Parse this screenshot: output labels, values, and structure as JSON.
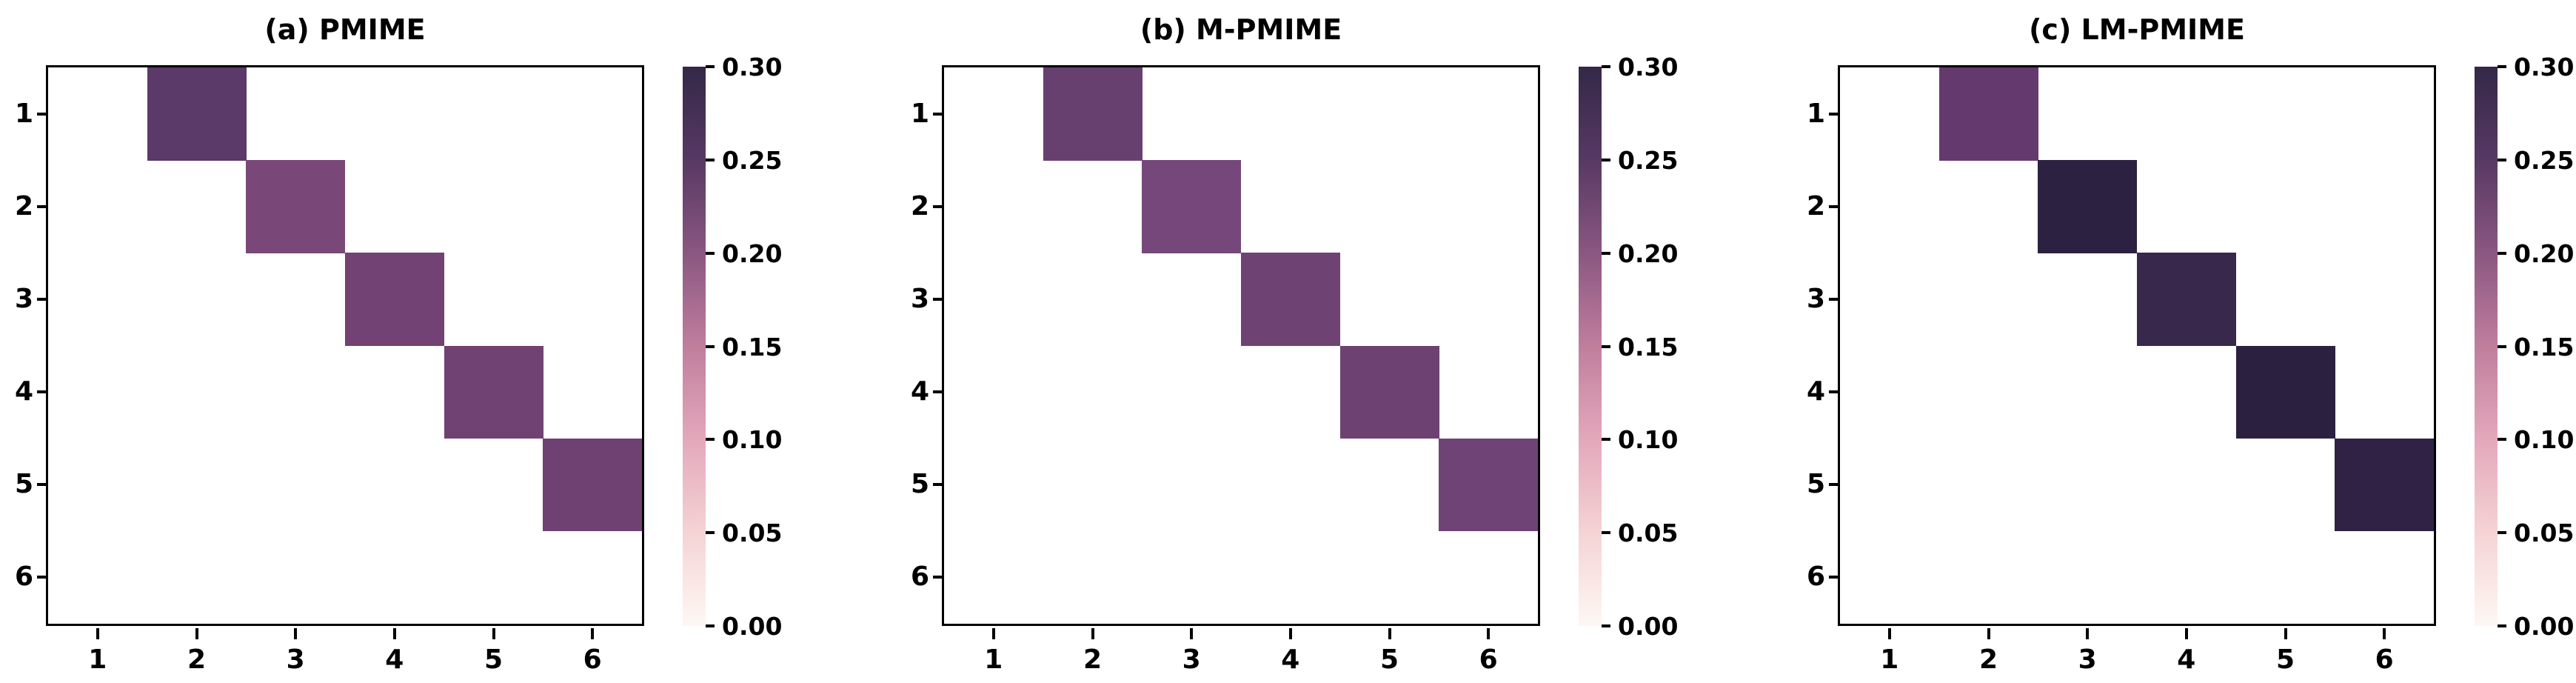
{
  "figure": {
    "background_color": "#ffffff",
    "text_color": "#000000"
  },
  "colormap": {
    "name": "light-pink-to-dark-purple",
    "stops": [
      {
        "value": 0.0,
        "color": "#fdf8f4"
      },
      {
        "value": 0.05,
        "color": "#f5d3d4"
      },
      {
        "value": 0.1,
        "color": "#e3a8bb"
      },
      {
        "value": 0.15,
        "color": "#c07e9d"
      },
      {
        "value": 0.2,
        "color": "#8a5781"
      },
      {
        "value": 0.25,
        "color": "#573964"
      },
      {
        "value": 0.3,
        "color": "#342847"
      }
    ]
  },
  "chart_data": [
    {
      "type": "heatmap",
      "title": "(a) PMIME",
      "x_tick_labels": [
        "1",
        "2",
        "3",
        "4",
        "5",
        "6"
      ],
      "y_tick_labels": [
        "1",
        "2",
        "3",
        "4",
        "5",
        "6"
      ],
      "value_range": [
        0.0,
        0.3
      ],
      "colorbar_ticks": [
        "0.30",
        "0.25",
        "0.20",
        "0.15",
        "0.10",
        "0.05",
        "0.00"
      ],
      "matrix": [
        [
          0,
          0.245,
          0,
          0,
          0,
          0
        ],
        [
          0,
          0,
          0.215,
          0,
          0,
          0
        ],
        [
          0,
          0,
          0,
          0.225,
          0,
          0
        ],
        [
          0,
          0,
          0,
          0,
          0.225,
          0
        ],
        [
          0,
          0,
          0,
          0,
          0,
          0.225
        ],
        [
          0,
          0,
          0,
          0,
          0,
          0
        ]
      ],
      "cells": [
        {
          "row": 1,
          "col": 2,
          "value": 0.245,
          "color": "#5b3968"
        },
        {
          "row": 2,
          "col": 3,
          "value": 0.215,
          "color": "#7a4878"
        },
        {
          "row": 3,
          "col": 4,
          "value": 0.225,
          "color": "#714273"
        },
        {
          "row": 4,
          "col": 5,
          "value": 0.225,
          "color": "#6f4273"
        },
        {
          "row": 5,
          "col": 6,
          "value": 0.225,
          "color": "#6f4173"
        }
      ]
    },
    {
      "type": "heatmap",
      "title": "(b) M-PMIME",
      "x_tick_labels": [
        "1",
        "2",
        "3",
        "4",
        "5",
        "6"
      ],
      "y_tick_labels": [
        "1",
        "2",
        "3",
        "4",
        "5",
        "6"
      ],
      "value_range": [
        0.0,
        0.3
      ],
      "colorbar_ticks": [
        "0.30",
        "0.25",
        "0.20",
        "0.15",
        "0.10",
        "0.05",
        "0.00"
      ],
      "matrix": [
        [
          0,
          0.235,
          0,
          0,
          0,
          0
        ],
        [
          0,
          0,
          0.22,
          0,
          0,
          0
        ],
        [
          0,
          0,
          0,
          0.225,
          0,
          0
        ],
        [
          0,
          0,
          0,
          0,
          0.225,
          0
        ],
        [
          0,
          0,
          0,
          0,
          0,
          0.225
        ],
        [
          0,
          0,
          0,
          0,
          0,
          0
        ]
      ],
      "cells": [
        {
          "row": 1,
          "col": 2,
          "value": 0.235,
          "color": "#684070"
        },
        {
          "row": 2,
          "col": 3,
          "value": 0.22,
          "color": "#75477b"
        },
        {
          "row": 3,
          "col": 4,
          "value": 0.225,
          "color": "#6e4374"
        },
        {
          "row": 4,
          "col": 5,
          "value": 0.225,
          "color": "#6e4173"
        },
        {
          "row": 5,
          "col": 6,
          "value": 0.225,
          "color": "#6f4376"
        }
      ]
    },
    {
      "type": "heatmap",
      "title": "(c) LM-PMIME",
      "x_tick_labels": [
        "1",
        "2",
        "3",
        "4",
        "5",
        "6"
      ],
      "y_tick_labels": [
        "1",
        "2",
        "3",
        "4",
        "5",
        "6"
      ],
      "value_range": [
        0.0,
        0.3
      ],
      "colorbar_ticks": [
        "0.30",
        "0.25",
        "0.20",
        "0.15",
        "0.10",
        "0.05",
        "0.00"
      ],
      "matrix": [
        [
          0,
          0.24,
          0,
          0,
          0,
          0
        ],
        [
          0,
          0,
          0.3,
          0,
          0,
          0
        ],
        [
          0,
          0,
          0,
          0.29,
          0,
          0
        ],
        [
          0,
          0,
          0,
          0,
          0.3,
          0
        ],
        [
          0,
          0,
          0,
          0,
          0,
          0.3
        ],
        [
          0,
          0,
          0,
          0,
          0,
          0
        ]
      ],
      "cells": [
        {
          "row": 1,
          "col": 2,
          "value": 0.24,
          "color": "#643a6e"
        },
        {
          "row": 2,
          "col": 3,
          "value": 0.3,
          "color": "#2d2142"
        },
        {
          "row": 3,
          "col": 4,
          "value": 0.29,
          "color": "#38284c"
        },
        {
          "row": 4,
          "col": 5,
          "value": 0.3,
          "color": "#2c2041"
        },
        {
          "row": 5,
          "col": 6,
          "value": 0.3,
          "color": "#2f2245"
        }
      ]
    }
  ]
}
